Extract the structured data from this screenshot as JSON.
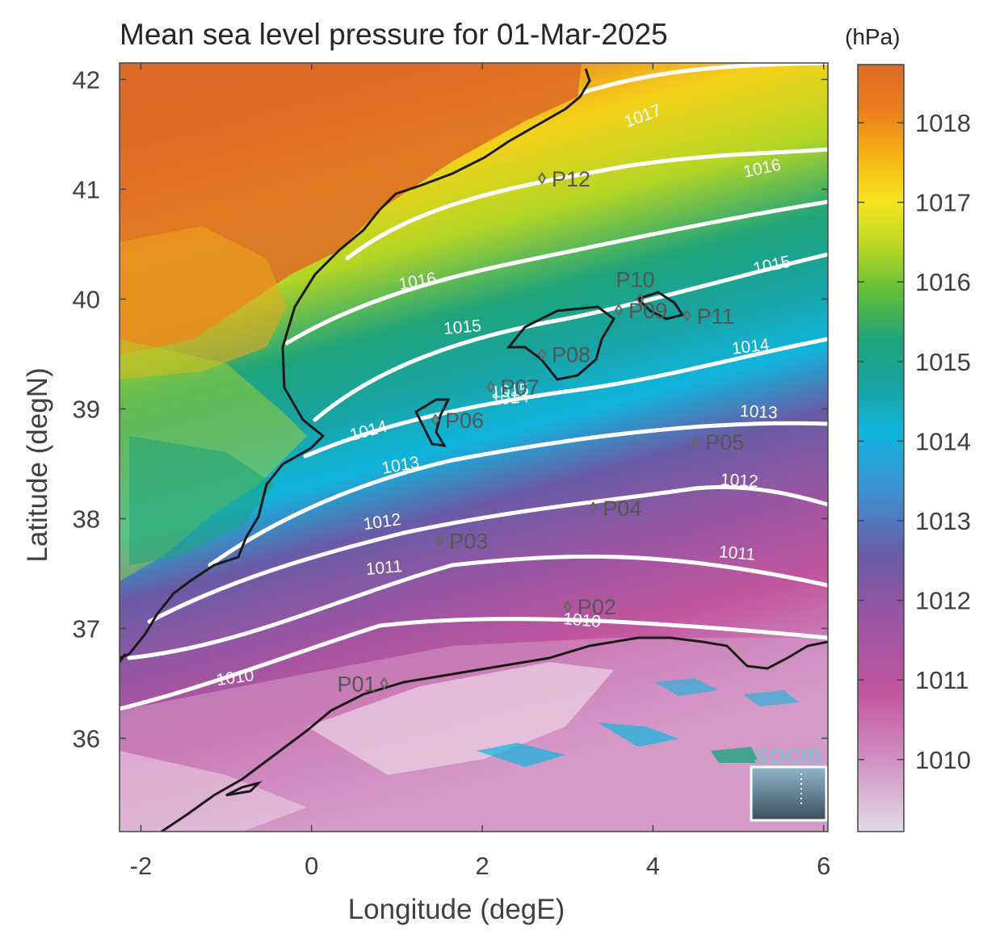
{
  "title": "Mean sea level pressure for 01-Mar-2025",
  "unit": "(hPa)",
  "xlabel": "Longitude (degE)",
  "ylabel": "Latitude (degN)",
  "xticks": [
    "-2",
    "0",
    "2",
    "4",
    "6"
  ],
  "yticks": [
    "42",
    "41",
    "40",
    "39",
    "38",
    "37",
    "36"
  ],
  "colorbar_ticks": [
    "1018",
    "1017",
    "1016",
    "1015",
    "1014",
    "1013",
    "1012",
    "1011",
    "1010"
  ],
  "colorbar_colors": [
    "#e0dbe6",
    "#d49ac8",
    "#c2559f",
    "#9a55a2",
    "#6a5ba6",
    "#3f8fd0",
    "#10b5de",
    "#19a3a2",
    "#1ea47a",
    "#5cbc3d",
    "#b5d624",
    "#f5e51e",
    "#f6b514",
    "#ea7f1f",
    "#dd6a26"
  ],
  "contour_labels": [
    "1017",
    "1016",
    "1016",
    "1015",
    "1015",
    "1015",
    "1014",
    "1014",
    "1014",
    "1013",
    "1013",
    "1012",
    "1012",
    "1011",
    "1011",
    "1010",
    "1010"
  ],
  "points": [
    {
      "name": "P01",
      "lon": 0.85,
      "lat": 36.5
    },
    {
      "name": "P02",
      "lon": 3.0,
      "lat": 37.2
    },
    {
      "name": "P03",
      "lon": 1.5,
      "lat": 37.8
    },
    {
      "name": "P04",
      "lon": 3.3,
      "lat": 38.1
    },
    {
      "name": "P05",
      "lon": 4.5,
      "lat": 38.7
    },
    {
      "name": "P06",
      "lon": 1.45,
      "lat": 38.9
    },
    {
      "name": "P07",
      "lon": 2.1,
      "lat": 39.2
    },
    {
      "name": "P08",
      "lon": 2.7,
      "lat": 39.5
    },
    {
      "name": "P09",
      "lon": 3.6,
      "lat": 39.9
    },
    {
      "name": "P10",
      "lon": 3.85,
      "lat": 40.0
    },
    {
      "name": "P11",
      "lon": 4.4,
      "lat": 39.85
    },
    {
      "name": "P12",
      "lon": 2.7,
      "lat": 41.1
    }
  ],
  "logo_text": "SOCIB"
}
